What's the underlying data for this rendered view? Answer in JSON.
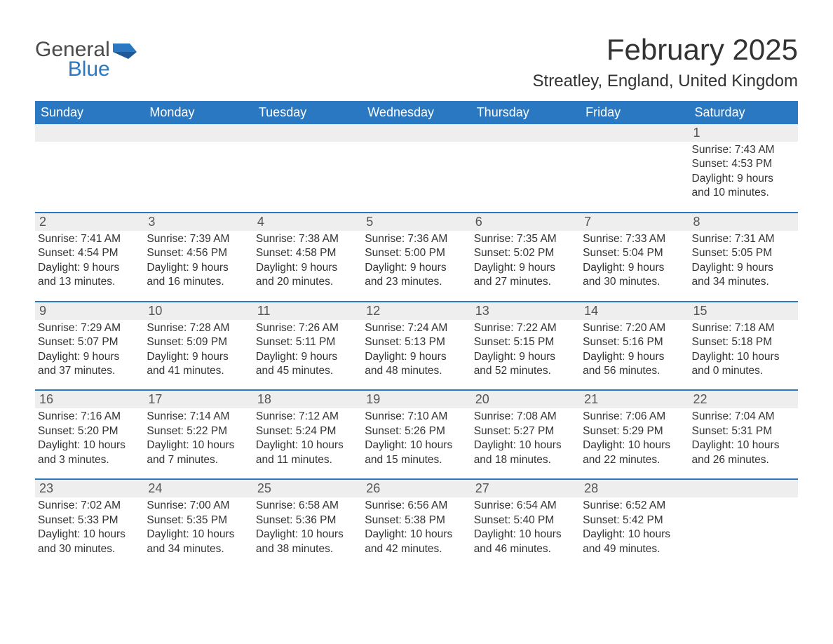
{
  "brand": {
    "name_part1": "General",
    "name_part2": "Blue",
    "text_color": "#4a4a4a",
    "accent_color": "#2b78c2"
  },
  "title": "February 2025",
  "location": "Streatley, England, United Kingdom",
  "colors": {
    "header_bg": "#2b78c2",
    "header_text": "#ffffff",
    "daynum_bg": "#eeeeee",
    "daynum_text": "#555555",
    "body_text": "#333333",
    "rule": "#2b78c2",
    "page_bg": "#ffffff"
  },
  "fonts": {
    "title_size_pt": 42,
    "location_size_pt": 24,
    "weekday_size_pt": 18,
    "daynum_size_pt": 18,
    "body_size_pt": 15.5
  },
  "weekdays": [
    "Sunday",
    "Monday",
    "Tuesday",
    "Wednesday",
    "Thursday",
    "Friday",
    "Saturday"
  ],
  "weeks": [
    {
      "daynums": [
        "",
        "",
        "",
        "",
        "",
        "",
        "1"
      ],
      "cells": [
        {
          "sunrise": "",
          "sunset": "",
          "daylight1": "",
          "daylight2": ""
        },
        {
          "sunrise": "",
          "sunset": "",
          "daylight1": "",
          "daylight2": ""
        },
        {
          "sunrise": "",
          "sunset": "",
          "daylight1": "",
          "daylight2": ""
        },
        {
          "sunrise": "",
          "sunset": "",
          "daylight1": "",
          "daylight2": ""
        },
        {
          "sunrise": "",
          "sunset": "",
          "daylight1": "",
          "daylight2": ""
        },
        {
          "sunrise": "",
          "sunset": "",
          "daylight1": "",
          "daylight2": ""
        },
        {
          "sunrise": "Sunrise: 7:43 AM",
          "sunset": "Sunset: 4:53 PM",
          "daylight1": "Daylight: 9 hours",
          "daylight2": "and 10 minutes."
        }
      ]
    },
    {
      "daynums": [
        "2",
        "3",
        "4",
        "5",
        "6",
        "7",
        "8"
      ],
      "cells": [
        {
          "sunrise": "Sunrise: 7:41 AM",
          "sunset": "Sunset: 4:54 PM",
          "daylight1": "Daylight: 9 hours",
          "daylight2": "and 13 minutes."
        },
        {
          "sunrise": "Sunrise: 7:39 AM",
          "sunset": "Sunset: 4:56 PM",
          "daylight1": "Daylight: 9 hours",
          "daylight2": "and 16 minutes."
        },
        {
          "sunrise": "Sunrise: 7:38 AM",
          "sunset": "Sunset: 4:58 PM",
          "daylight1": "Daylight: 9 hours",
          "daylight2": "and 20 minutes."
        },
        {
          "sunrise": "Sunrise: 7:36 AM",
          "sunset": "Sunset: 5:00 PM",
          "daylight1": "Daylight: 9 hours",
          "daylight2": "and 23 minutes."
        },
        {
          "sunrise": "Sunrise: 7:35 AM",
          "sunset": "Sunset: 5:02 PM",
          "daylight1": "Daylight: 9 hours",
          "daylight2": "and 27 minutes."
        },
        {
          "sunrise": "Sunrise: 7:33 AM",
          "sunset": "Sunset: 5:04 PM",
          "daylight1": "Daylight: 9 hours",
          "daylight2": "and 30 minutes."
        },
        {
          "sunrise": "Sunrise: 7:31 AM",
          "sunset": "Sunset: 5:05 PM",
          "daylight1": "Daylight: 9 hours",
          "daylight2": "and 34 minutes."
        }
      ]
    },
    {
      "daynums": [
        "9",
        "10",
        "11",
        "12",
        "13",
        "14",
        "15"
      ],
      "cells": [
        {
          "sunrise": "Sunrise: 7:29 AM",
          "sunset": "Sunset: 5:07 PM",
          "daylight1": "Daylight: 9 hours",
          "daylight2": "and 37 minutes."
        },
        {
          "sunrise": "Sunrise: 7:28 AM",
          "sunset": "Sunset: 5:09 PM",
          "daylight1": "Daylight: 9 hours",
          "daylight2": "and 41 minutes."
        },
        {
          "sunrise": "Sunrise: 7:26 AM",
          "sunset": "Sunset: 5:11 PM",
          "daylight1": "Daylight: 9 hours",
          "daylight2": "and 45 minutes."
        },
        {
          "sunrise": "Sunrise: 7:24 AM",
          "sunset": "Sunset: 5:13 PM",
          "daylight1": "Daylight: 9 hours",
          "daylight2": "and 48 minutes."
        },
        {
          "sunrise": "Sunrise: 7:22 AM",
          "sunset": "Sunset: 5:15 PM",
          "daylight1": "Daylight: 9 hours",
          "daylight2": "and 52 minutes."
        },
        {
          "sunrise": "Sunrise: 7:20 AM",
          "sunset": "Sunset: 5:16 PM",
          "daylight1": "Daylight: 9 hours",
          "daylight2": "and 56 minutes."
        },
        {
          "sunrise": "Sunrise: 7:18 AM",
          "sunset": "Sunset: 5:18 PM",
          "daylight1": "Daylight: 10 hours",
          "daylight2": "and 0 minutes."
        }
      ]
    },
    {
      "daynums": [
        "16",
        "17",
        "18",
        "19",
        "20",
        "21",
        "22"
      ],
      "cells": [
        {
          "sunrise": "Sunrise: 7:16 AM",
          "sunset": "Sunset: 5:20 PM",
          "daylight1": "Daylight: 10 hours",
          "daylight2": "and 3 minutes."
        },
        {
          "sunrise": "Sunrise: 7:14 AM",
          "sunset": "Sunset: 5:22 PM",
          "daylight1": "Daylight: 10 hours",
          "daylight2": "and 7 minutes."
        },
        {
          "sunrise": "Sunrise: 7:12 AM",
          "sunset": "Sunset: 5:24 PM",
          "daylight1": "Daylight: 10 hours",
          "daylight2": "and 11 minutes."
        },
        {
          "sunrise": "Sunrise: 7:10 AM",
          "sunset": "Sunset: 5:26 PM",
          "daylight1": "Daylight: 10 hours",
          "daylight2": "and 15 minutes."
        },
        {
          "sunrise": "Sunrise: 7:08 AM",
          "sunset": "Sunset: 5:27 PM",
          "daylight1": "Daylight: 10 hours",
          "daylight2": "and 18 minutes."
        },
        {
          "sunrise": "Sunrise: 7:06 AM",
          "sunset": "Sunset: 5:29 PM",
          "daylight1": "Daylight: 10 hours",
          "daylight2": "and 22 minutes."
        },
        {
          "sunrise": "Sunrise: 7:04 AM",
          "sunset": "Sunset: 5:31 PM",
          "daylight1": "Daylight: 10 hours",
          "daylight2": "and 26 minutes."
        }
      ]
    },
    {
      "daynums": [
        "23",
        "24",
        "25",
        "26",
        "27",
        "28",
        ""
      ],
      "cells": [
        {
          "sunrise": "Sunrise: 7:02 AM",
          "sunset": "Sunset: 5:33 PM",
          "daylight1": "Daylight: 10 hours",
          "daylight2": "and 30 minutes."
        },
        {
          "sunrise": "Sunrise: 7:00 AM",
          "sunset": "Sunset: 5:35 PM",
          "daylight1": "Daylight: 10 hours",
          "daylight2": "and 34 minutes."
        },
        {
          "sunrise": "Sunrise: 6:58 AM",
          "sunset": "Sunset: 5:36 PM",
          "daylight1": "Daylight: 10 hours",
          "daylight2": "and 38 minutes."
        },
        {
          "sunrise": "Sunrise: 6:56 AM",
          "sunset": "Sunset: 5:38 PM",
          "daylight1": "Daylight: 10 hours",
          "daylight2": "and 42 minutes."
        },
        {
          "sunrise": "Sunrise: 6:54 AM",
          "sunset": "Sunset: 5:40 PM",
          "daylight1": "Daylight: 10 hours",
          "daylight2": "and 46 minutes."
        },
        {
          "sunrise": "Sunrise: 6:52 AM",
          "sunset": "Sunset: 5:42 PM",
          "daylight1": "Daylight: 10 hours",
          "daylight2": "and 49 minutes."
        },
        {
          "sunrise": "",
          "sunset": "",
          "daylight1": "",
          "daylight2": ""
        }
      ]
    }
  ]
}
